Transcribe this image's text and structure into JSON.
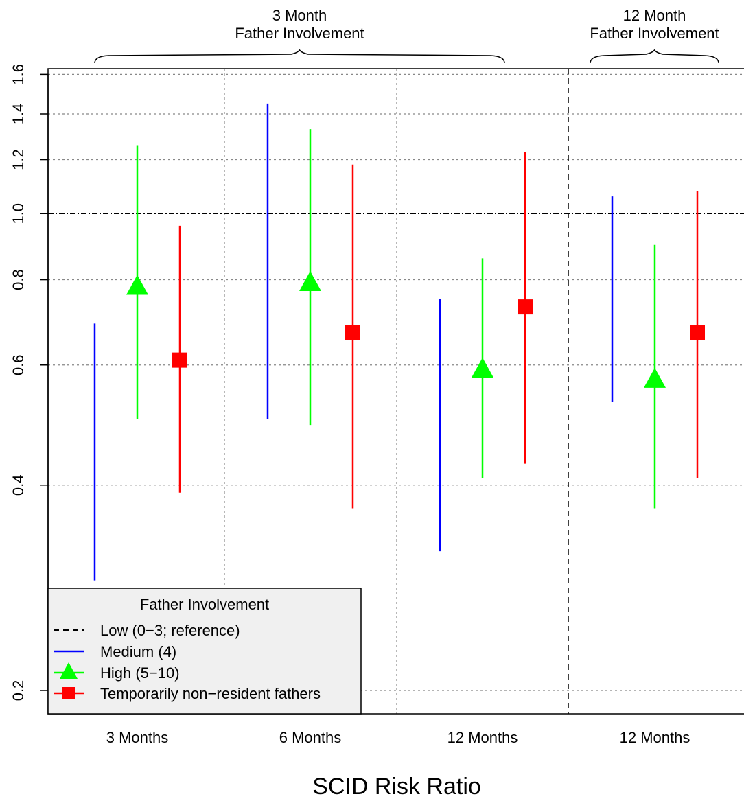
{
  "chart_data": {
    "type": "errorbar",
    "xlabel": "SCID Risk Ratio",
    "ylabel": "",
    "y_scale": "log",
    "ylim": [
      0.18,
      1.6
    ],
    "y_ticks": [
      0.2,
      0.4,
      0.6,
      0.8,
      1.0,
      1.2,
      1.4,
      1.6
    ],
    "y_tick_labels": [
      "0.2",
      "0.4",
      "0.6",
      "0.8",
      "1.0",
      "1.2",
      "1.4",
      "1.6"
    ],
    "reference_line": 1.0,
    "categories": [
      "3 Months",
      "6 Months",
      "12 Months",
      "12 Months"
    ],
    "panels": [
      {
        "label_line1": "3 Month",
        "label_line2": "Father Involvement",
        "categories": [
          0,
          1,
          2
        ]
      },
      {
        "label_line1": "12 Month",
        "label_line2": "Father Involvement",
        "categories": [
          3
        ]
      }
    ],
    "legend": {
      "title": "Father Involvement",
      "position": "bottom-left",
      "items": [
        {
          "label": "Low (0−3; reference)",
          "style": "dashed",
          "color": "#000000"
        },
        {
          "label": "Medium (4)",
          "style": "line",
          "color": "#0000ff"
        },
        {
          "label": "High (5−10)",
          "style": "triangle",
          "color": "#00ff00"
        },
        {
          "label": "Temporarily non−resident fathers",
          "style": "square",
          "color": "#ff0000"
        }
      ]
    },
    "series": [
      {
        "key": "medium",
        "color": "#0000ff",
        "marker": "none",
        "points": [
          {
            "cat": 0,
            "lo": 0.29,
            "hi": 0.69
          },
          {
            "cat": 1,
            "lo": 0.5,
            "hi": 1.45
          },
          {
            "cat": 2,
            "lo": 0.32,
            "hi": 0.75
          },
          {
            "cat": 3,
            "lo": 0.53,
            "hi": 1.06
          }
        ]
      },
      {
        "key": "high",
        "color": "#00ff00",
        "marker": "triangle",
        "points": [
          {
            "cat": 0,
            "est": 0.78,
            "lo": 0.5,
            "hi": 1.26
          },
          {
            "cat": 1,
            "est": 0.79,
            "lo": 0.49,
            "hi": 1.33
          },
          {
            "cat": 2,
            "est": 0.59,
            "lo": 0.41,
            "hi": 0.86
          },
          {
            "cat": 3,
            "est": 0.57,
            "lo": 0.37,
            "hi": 0.9
          }
        ]
      },
      {
        "key": "nonresident",
        "color": "#ff0000",
        "marker": "square",
        "points": [
          {
            "cat": 0,
            "est": 0.61,
            "lo": 0.39,
            "hi": 0.96
          },
          {
            "cat": 1,
            "est": 0.67,
            "lo": 0.37,
            "hi": 1.18
          },
          {
            "cat": 2,
            "est": 0.73,
            "lo": 0.43,
            "hi": 1.23
          },
          {
            "cat": 3,
            "est": 0.67,
            "lo": 0.41,
            "hi": 1.08
          }
        ]
      }
    ]
  }
}
